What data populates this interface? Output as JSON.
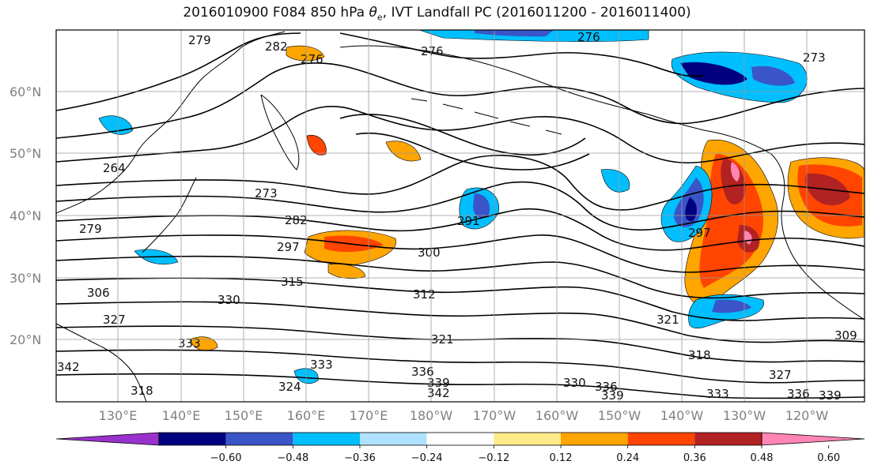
{
  "title_pre": "2016010900 F084 850 hPa ",
  "title_sym": "θ",
  "title_sub": "e",
  "title_post": ", IVT Landfall PC (2016011200 - 2016011400)",
  "lat_labels": [
    "60°N",
    "50°N",
    "40°N",
    "30°N",
    "20°N"
  ],
  "lon_labels": [
    "130°E",
    "140°E",
    "150°E",
    "160°E",
    "170°E",
    "180°W",
    "170°W",
    "160°W",
    "150°W",
    "140°W",
    "130°W",
    "120°W"
  ],
  "colorbar": {
    "colors": [
      "#9932cc",
      "#000080",
      "#3a55c8",
      "#00bfff",
      "#b0e2ff",
      "#ffffff",
      "#ffea8a",
      "#ffa500",
      "#ff4500",
      "#b22222",
      "#ff85b4"
    ],
    "ticks": [
      "−0.60",
      "−0.48",
      "−0.36",
      "−0.24",
      "−0.12",
      "0.12",
      "0.24",
      "0.36",
      "0.48",
      "0.60"
    ]
  },
  "contour_labels": [
    {
      "text": "279"
    },
    {
      "text": "282"
    },
    {
      "text": "276"
    },
    {
      "text": "276"
    },
    {
      "text": "276"
    },
    {
      "text": "273"
    },
    {
      "text": "264"
    },
    {
      "text": "273"
    },
    {
      "text": "279"
    },
    {
      "text": "282"
    },
    {
      "text": "291"
    },
    {
      "text": "297"
    },
    {
      "text": "300"
    },
    {
      "text": "306"
    },
    {
      "text": "315"
    },
    {
      "text": "312"
    },
    {
      "text": "330"
    },
    {
      "text": "327"
    },
    {
      "text": "321"
    },
    {
      "text": "321"
    },
    {
      "text": "318"
    },
    {
      "text": "309"
    },
    {
      "text": "333"
    },
    {
      "text": "336"
    },
    {
      "text": "339"
    },
    {
      "text": "342"
    },
    {
      "text": "342"
    },
    {
      "text": "330"
    },
    {
      "text": "336"
    },
    {
      "text": "339"
    },
    {
      "text": "333"
    },
    {
      "text": "336"
    },
    {
      "text": "339"
    },
    {
      "text": "327"
    },
    {
      "text": "318"
    },
    {
      "text": "324"
    },
    {
      "text": "333"
    },
    {
      "text": "297"
    }
  ]
}
